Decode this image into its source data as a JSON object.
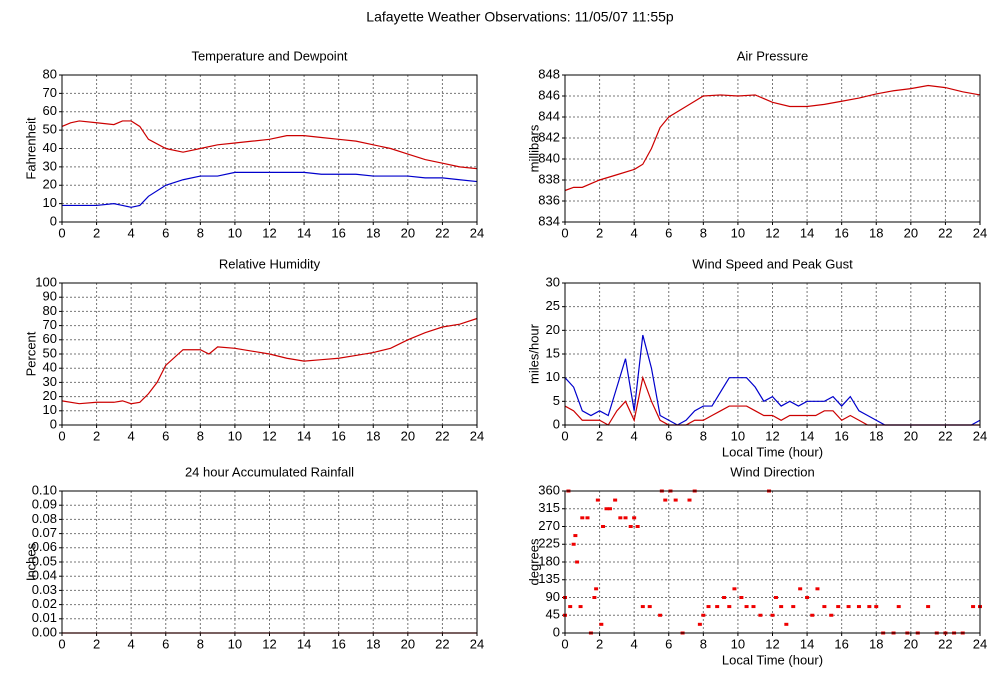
{
  "title": "Lafayette Weather Observations: 11/05/07 11:55p",
  "chart_data": [
    {
      "type": "line",
      "title": "Temperature and Dewpoint",
      "ylabel": "Fahrenheit",
      "x": [
        0,
        0.5,
        1,
        2,
        3,
        3.5,
        4,
        4.5,
        5,
        6,
        7,
        8,
        9,
        10,
        11,
        12,
        13,
        14,
        15,
        16,
        17,
        18,
        19,
        20,
        21,
        22,
        23,
        24
      ],
      "series": [
        {
          "color": "#cc0000",
          "values": [
            52,
            54,
            55,
            54,
            53,
            55,
            55,
            52,
            45,
            40,
            38,
            40,
            42,
            43,
            44,
            45,
            47,
            47,
            46,
            45,
            44,
            42,
            40,
            37,
            34,
            32,
            30,
            29
          ]
        },
        {
          "color": "#0000cc",
          "values": [
            9,
            9,
            9,
            9,
            10,
            9,
            8,
            9,
            14,
            20,
            23,
            25,
            25,
            27,
            27,
            27,
            27,
            27,
            26,
            26,
            26,
            25,
            25,
            25,
            24,
            24,
            23,
            22
          ]
        }
      ],
      "xlim": [
        0,
        24
      ],
      "xticks": [
        0,
        2,
        4,
        6,
        8,
        10,
        12,
        14,
        16,
        18,
        20,
        22,
        24
      ],
      "ylim": [
        0,
        80
      ],
      "yticks": [
        0,
        10,
        20,
        30,
        40,
        50,
        60,
        70,
        80
      ],
      "grid": true
    },
    {
      "type": "line",
      "title": "Air Pressure",
      "ylabel": "millibars",
      "x": [
        0,
        0.5,
        1,
        2,
        3,
        4,
        4.5,
        5,
        5.5,
        6,
        7,
        8,
        9,
        10,
        11,
        12,
        13,
        14,
        15,
        16,
        17,
        18,
        19,
        20,
        21,
        22,
        23,
        24
      ],
      "series": [
        {
          "color": "#cc0000",
          "values": [
            837,
            837.3,
            837.3,
            838,
            838.5,
            839,
            839.5,
            841,
            843,
            844,
            845,
            846,
            846.1,
            846,
            846.1,
            845.4,
            845,
            845,
            845.2,
            845.5,
            845.8,
            846.2,
            846.5,
            846.7,
            847,
            846.8,
            846.4,
            846.1
          ]
        }
      ],
      "xlim": [
        0,
        24
      ],
      "xticks": [
        0,
        2,
        4,
        6,
        8,
        10,
        12,
        14,
        16,
        18,
        20,
        22,
        24
      ],
      "ylim": [
        834,
        848
      ],
      "yticks": [
        834,
        836,
        838,
        840,
        842,
        844,
        846,
        848
      ],
      "grid": true
    },
    {
      "type": "line",
      "title": "Relative Humidity",
      "ylabel": "Percent",
      "x": [
        0,
        1,
        2,
        3,
        3.5,
        4,
        4.5,
        5,
        5.5,
        6,
        7,
        8,
        8.5,
        9,
        10,
        11,
        12,
        13,
        14,
        15,
        16,
        17,
        18,
        19,
        20,
        21,
        22,
        23,
        24
      ],
      "series": [
        {
          "color": "#cc0000",
          "values": [
            17,
            15,
            16,
            16,
            17,
            15,
            16,
            22,
            30,
            42,
            53,
            53,
            50,
            55,
            54,
            52,
            50,
            47,
            45,
            46,
            47,
            49,
            51,
            54,
            60,
            65,
            69,
            71,
            75
          ]
        }
      ],
      "xlim": [
        0,
        24
      ],
      "xticks": [
        0,
        2,
        4,
        6,
        8,
        10,
        12,
        14,
        16,
        18,
        20,
        22,
        24
      ],
      "ylim": [
        0,
        100
      ],
      "yticks": [
        0,
        10,
        20,
        30,
        40,
        50,
        60,
        70,
        80,
        90,
        100
      ],
      "grid": true
    },
    {
      "type": "line",
      "title": "Wind Speed and Peak Gust",
      "ylabel": "miles/hour",
      "xlabel": "Local Time (hour)",
      "x": [
        0,
        0.5,
        1,
        1.5,
        2,
        2.5,
        3,
        3.5,
        4,
        4.5,
        5,
        5.5,
        6,
        6.5,
        7,
        7.5,
        8,
        8.5,
        9,
        9.5,
        10,
        10.5,
        11,
        11.5,
        12,
        12.5,
        13,
        13.5,
        14,
        14.5,
        15,
        15.5,
        16,
        16.5,
        17,
        17.5,
        18,
        18.5,
        19,
        19.5,
        20,
        20.5,
        21,
        21.5,
        22,
        22.5,
        23,
        23.5,
        24
      ],
      "series": [
        {
          "color": "#0000cc",
          "values": [
            10,
            8,
            3,
            2,
            3,
            2,
            8,
            14,
            3,
            19,
            12,
            2,
            1,
            0,
            1,
            3,
            4,
            4,
            7,
            10,
            10,
            10,
            8,
            5,
            6,
            4,
            5,
            4,
            5,
            5,
            5,
            6,
            4,
            6,
            3,
            2,
            1,
            0,
            0,
            0,
            0,
            0,
            0,
            0,
            0,
            0,
            0,
            0,
            1
          ]
        },
        {
          "color": "#cc0000",
          "values": [
            4,
            3,
            1,
            1,
            1,
            0,
            3,
            5,
            1,
            10,
            5,
            1,
            0,
            0,
            0,
            1,
            1,
            2,
            3,
            4,
            4,
            4,
            3,
            2,
            2,
            1,
            2,
            2,
            2,
            2,
            3,
            3,
            1,
            2,
            1,
            0,
            0,
            0,
            0,
            0,
            0,
            0,
            0,
            0,
            0,
            0,
            0,
            0,
            0
          ]
        }
      ],
      "xlim": [
        0,
        24
      ],
      "xticks": [
        0,
        2,
        4,
        6,
        8,
        10,
        12,
        14,
        16,
        18,
        20,
        22,
        24
      ],
      "ylim": [
        0,
        30
      ],
      "yticks": [
        0,
        5,
        10,
        15,
        20,
        25,
        30
      ],
      "grid": true
    },
    {
      "type": "line",
      "title": "24 hour Accumulated Rainfall",
      "ylabel": "Inches",
      "x": [
        0,
        24
      ],
      "series": [
        {
          "color": "#cc0000",
          "values": [
            0,
            0
          ]
        }
      ],
      "xlim": [
        0,
        24
      ],
      "xticks": [
        0,
        2,
        4,
        6,
        8,
        10,
        12,
        14,
        16,
        18,
        20,
        22,
        24
      ],
      "ylim": [
        0,
        0.1
      ],
      "yticks": [
        {
          "value": 0,
          "label": "0.00"
        },
        {
          "value": 0.01,
          "label": "0.01"
        },
        {
          "value": 0.02,
          "label": "0.02"
        },
        {
          "value": 0.03,
          "label": "0.03"
        },
        {
          "value": 0.04,
          "label": "0.04"
        },
        {
          "value": 0.05,
          "label": "0.05"
        },
        {
          "value": 0.06,
          "label": "0.06"
        },
        {
          "value": 0.07,
          "label": "0.07"
        },
        {
          "value": 0.08,
          "label": "0.08"
        },
        {
          "value": 0.09,
          "label": "0.09"
        },
        {
          "value": 0.1,
          "label": "0.10"
        }
      ],
      "grid": true
    },
    {
      "type": "scatter",
      "title": "Wind Direction",
      "ylabel": "degrees",
      "xlabel": "Local Time (hour)",
      "color": "#ee0000",
      "x": [
        0,
        0,
        0.2,
        0.3,
        0.5,
        0.6,
        0.7,
        0.9,
        1,
        1.3,
        1.5,
        1.7,
        1.8,
        1.9,
        2.1,
        2.2,
        2.4,
        2.6,
        2.9,
        3.2,
        3.5,
        3.8,
        4,
        4.2,
        4.5,
        4.9,
        5.5,
        5.6,
        5.8,
        6.1,
        6.4,
        6.8,
        7.2,
        7.5,
        7.8,
        8,
        8.3,
        8.8,
        9.2,
        9.5,
        9.8,
        10.2,
        10.5,
        10.9,
        11.3,
        11.8,
        12,
        12.2,
        12.5,
        12.8,
        13.2,
        13.6,
        14,
        14.3,
        14.6,
        15,
        15.4,
        15.8,
        16.4,
        17,
        17.6,
        18,
        18.4,
        19,
        19.3,
        19.8,
        20.4,
        21,
        21.5,
        22,
        22.5,
        23,
        23.6,
        24
      ],
      "values": [
        45,
        90,
        360,
        67,
        225,
        247,
        180,
        67,
        292,
        292,
        0,
        90,
        112,
        337,
        22,
        270,
        315,
        315,
        337,
        292,
        292,
        270,
        292,
        270,
        67,
        67,
        45,
        360,
        337,
        360,
        337,
        0,
        337,
        360,
        22,
        45,
        67,
        67,
        90,
        67,
        112,
        90,
        67,
        67,
        45,
        360,
        45,
        90,
        67,
        22,
        67,
        112,
        90,
        45,
        112,
        67,
        45,
        67,
        67,
        67,
        67,
        67,
        0,
        0,
        67,
        0,
        0,
        67,
        0,
        0,
        0,
        0,
        67,
        67
      ],
      "xlim": [
        0,
        24
      ],
      "xticks": [
        0,
        2,
        4,
        6,
        8,
        10,
        12,
        14,
        16,
        18,
        20,
        22,
        24
      ],
      "ylim": [
        0,
        360
      ],
      "yticks": [
        0,
        45,
        90,
        135,
        180,
        225,
        270,
        315,
        360
      ],
      "grid": true
    }
  ]
}
